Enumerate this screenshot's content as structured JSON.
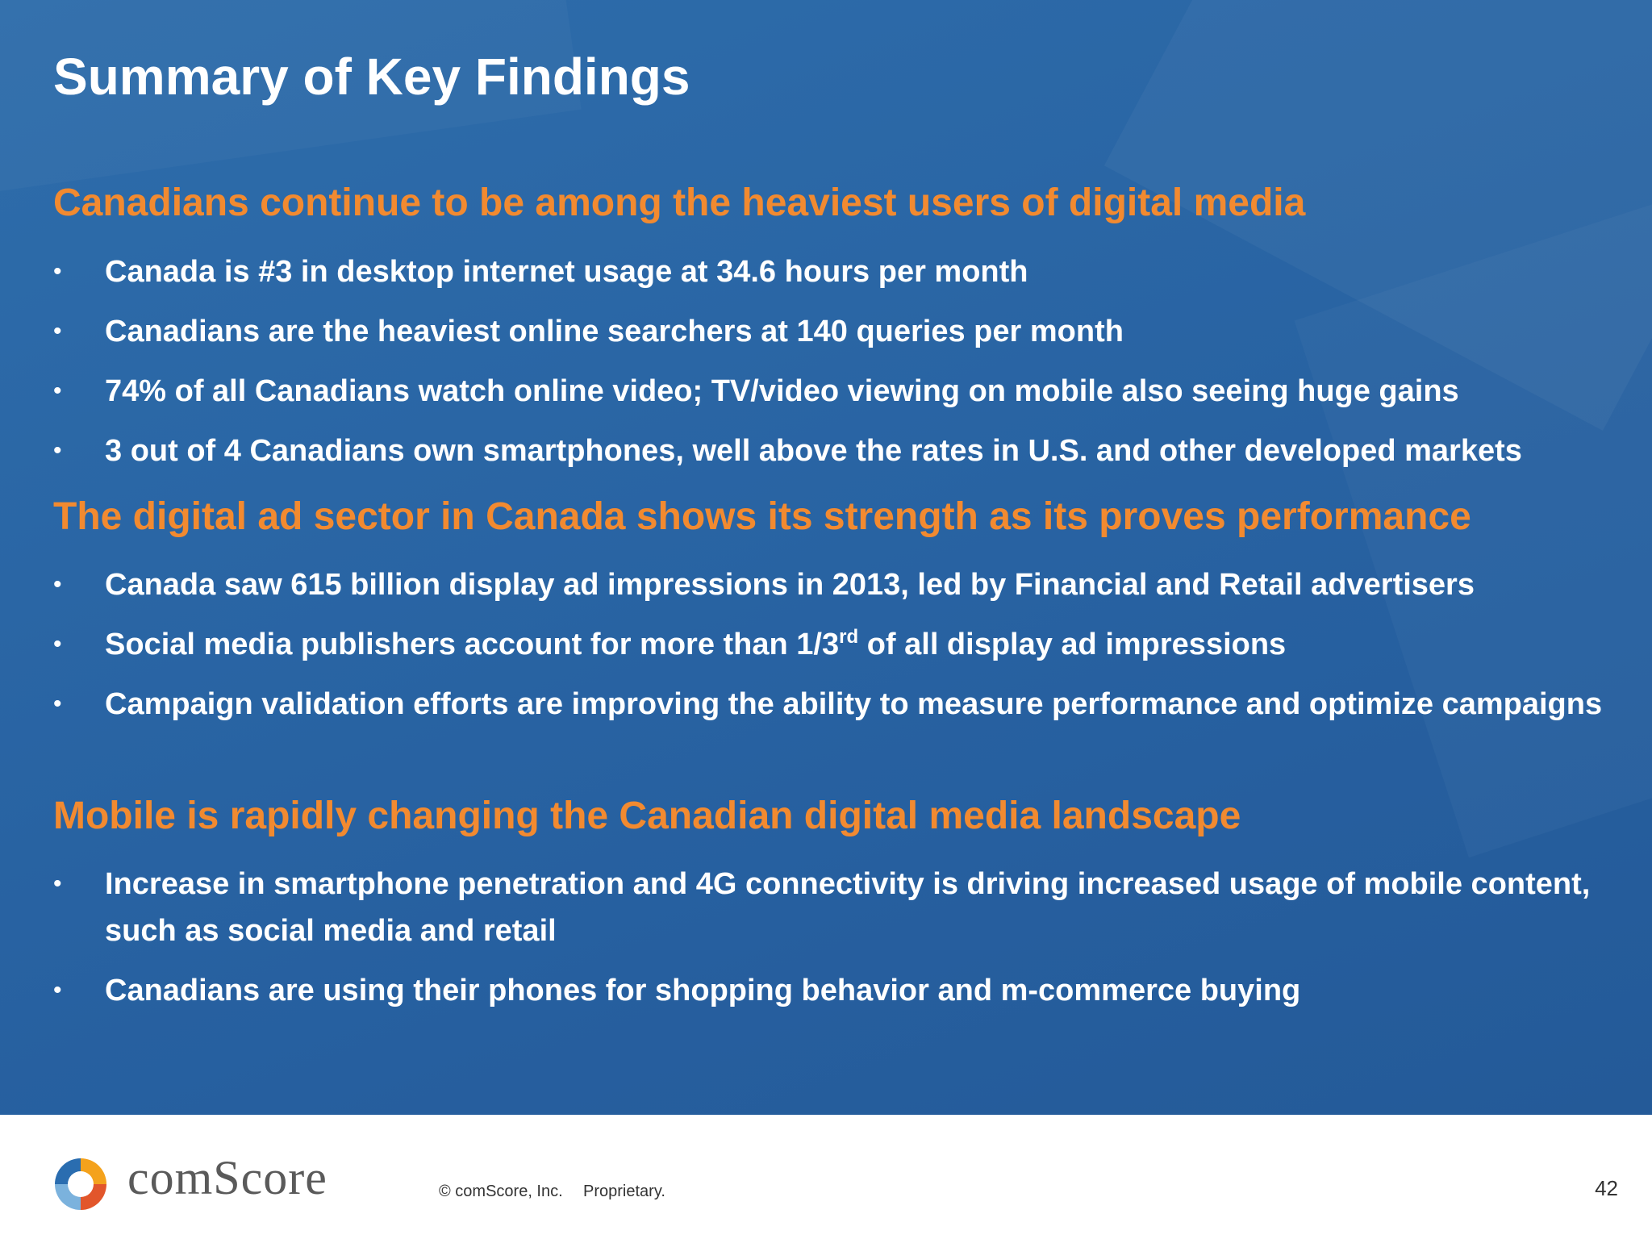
{
  "slide": {
    "title": "Summary of Key Findings",
    "sections": [
      {
        "heading": "Canadians continue to be among the heaviest users of digital media",
        "bullets": [
          "Canada is #3 in desktop internet usage at 34.6 hours per month",
          "Canadians are the heaviest online searchers at 140 queries per month",
          "74% of all Canadians watch online video; TV/video viewing on mobile also seeing huge gains",
          "3 out of 4 Canadians own smartphones, well above the rates in U.S. and other developed markets"
        ]
      },
      {
        "heading": "The digital ad sector in Canada shows its strength as its proves performance",
        "bullets": [
          "Canada saw 615 billion display ad impressions in 2013, led by Financial and Retail advertisers",
          {
            "before": "Social media publishers account for more than 1/3",
            "sup": "rd",
            "after": " of all display ad impressions"
          },
          "Campaign validation efforts are improving the ability to measure performance and optimize campaigns"
        ]
      },
      {
        "heading": "Mobile is rapidly changing the Canadian digital media landscape",
        "bullets": [
          "Increase in smartphone penetration and 4G connectivity is driving increased usage of mobile content, such as social media and retail",
          "Canadians are using their phones for shopping behavior and m-commerce buying"
        ]
      }
    ],
    "bullet_symbol": "•"
  },
  "footer": {
    "brand": "comScore",
    "copyright": "© comScore, Inc.",
    "proprietary": "Proprietary.",
    "page_number": "42"
  },
  "colors": {
    "background": "#2a66a5",
    "heading": "#f28a30",
    "text": "#ffffff"
  }
}
